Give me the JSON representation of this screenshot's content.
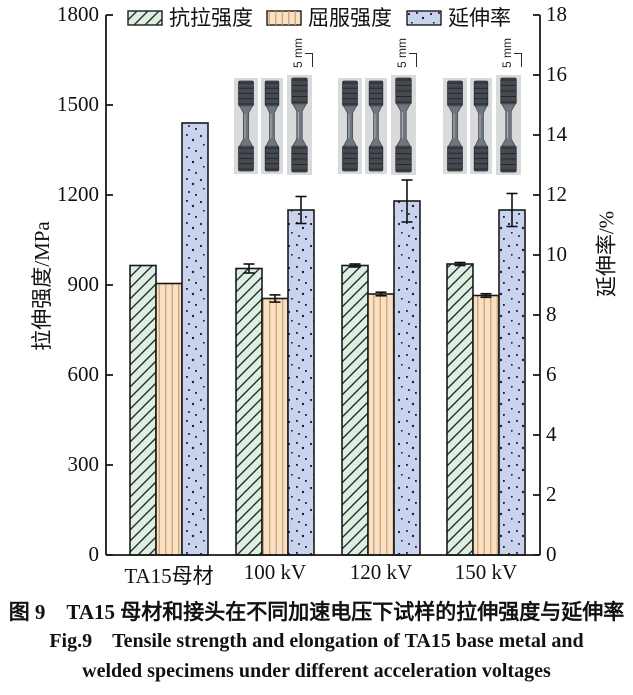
{
  "figure": {
    "caption_cn": "图 9　TA15 母材和接头在不同加速电压下试样的拉伸强度与延伸率",
    "caption_en_line1": "Fig.9 Tensile strength and elongation of TA15 base metal and",
    "caption_en_line2": "welded specimens under different acceleration voltages"
  },
  "chart_data": {
    "type": "bar",
    "categories": [
      "TA15母材",
      "100 kV",
      "120 kV",
      "150 kV"
    ],
    "series": [
      {
        "key": "tensile-strength",
        "name": "抗拉强度",
        "axis": "left",
        "values": [
          965,
          955,
          965,
          970
        ],
        "errors": [
          0,
          15,
          5,
          5
        ],
        "color": "#dcefe2",
        "hatch": "diagonal",
        "hatch_color": "#2b2b2b"
      },
      {
        "key": "yield-strength",
        "name": "屈服强度",
        "axis": "left",
        "values": [
          905,
          855,
          870,
          865
        ],
        "errors": [
          0,
          12,
          6,
          6
        ],
        "color": "#fadfc0",
        "hatch": "vertical",
        "hatch_color": "#c2a07c"
      },
      {
        "key": "elongation",
        "name": "延伸率",
        "axis": "right",
        "values": [
          14.4,
          11.5,
          11.8,
          11.5
        ],
        "errors": [
          0,
          0.45,
          0.7,
          0.55
        ],
        "color": "#c9d3ee",
        "hatch": "dots",
        "hatch_color": "#1c1c30"
      }
    ],
    "ylabel_left": "拉伸强度/MPa",
    "ylabel_right": "延伸率/%",
    "ylim_left": [
      0,
      1800
    ],
    "ylim_right": [
      0,
      18
    ],
    "yticks_left": [
      0,
      300,
      600,
      900,
      1200,
      1500,
      1800
    ],
    "yticks_right": [
      0,
      2,
      4,
      6,
      8,
      10,
      12,
      14,
      16,
      18
    ],
    "legend_position": "top",
    "grid": false,
    "axis_color": "#1a1a1a"
  },
  "inset_photos": {
    "scale_label": "5 mm",
    "groups": [
      {
        "over_category": "100 kV",
        "specimen_count": 3
      },
      {
        "over_category": "120 kV",
        "specimen_count": 3
      },
      {
        "over_category": "150 kV",
        "specimen_count": 3
      }
    ]
  }
}
